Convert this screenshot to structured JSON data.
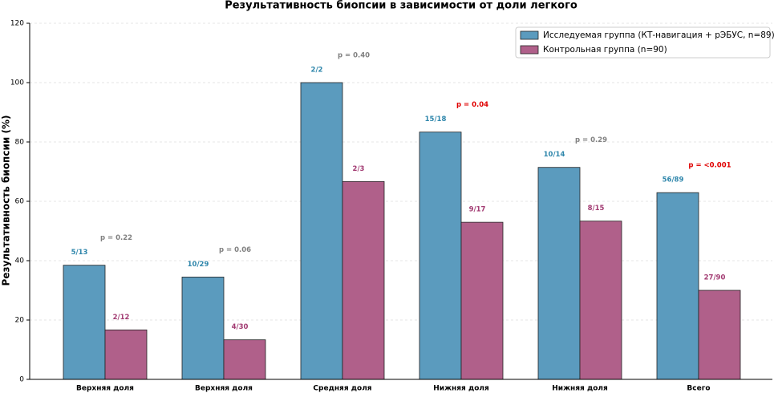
{
  "chart_data": {
    "type": "bar",
    "title": "Результативность биопсии в зависимости от доли легкого",
    "y_label": "Результативность биопсии (%)",
    "categories": [
      "Верхняя доля",
      "Верхняя доля",
      "Средняя доля",
      "Нижняя доля",
      "Нижняя доля",
      "Всего"
    ],
    "series": [
      {
        "name": "Исследуемая группа (КТ-навигация + рЭБУС, n=89)",
        "color": "#5b9bbe",
        "label_color": "#2e86ab",
        "values": [
          38.46,
          34.48,
          100,
          83.33,
          71.43,
          62.92
        ],
        "value_labels": [
          "5/13",
          "10/29",
          "2/2",
          "15/18",
          "10/14",
          "56/89"
        ]
      },
      {
        "name": "Контрольная группа (n=90)",
        "color": "#b0608a",
        "label_color": "#a23b72",
        "values": [
          16.67,
          13.33,
          66.67,
          52.94,
          53.33,
          30.0
        ],
        "value_labels": [
          "2/12",
          "4/30",
          "2/3",
          "9/17",
          "8/15",
          "27/90"
        ]
      }
    ],
    "annotations": [
      {
        "text": "p = 0.22",
        "color": "#808080"
      },
      {
        "text": "p = 0.06",
        "color": "#808080"
      },
      {
        "text": "p = 0.40",
        "color": "#808080"
      },
      {
        "text": "p = 0.04",
        "color": "#e00000"
      },
      {
        "text": "p = 0.29",
        "color": "#808080"
      },
      {
        "text": "p = <0.001",
        "color": "#e00000"
      }
    ],
    "ylim": [
      0,
      120
    ],
    "yticks": [
      0,
      20,
      40,
      60,
      80,
      100,
      120
    ],
    "grid": true,
    "legend": "upper right"
  }
}
